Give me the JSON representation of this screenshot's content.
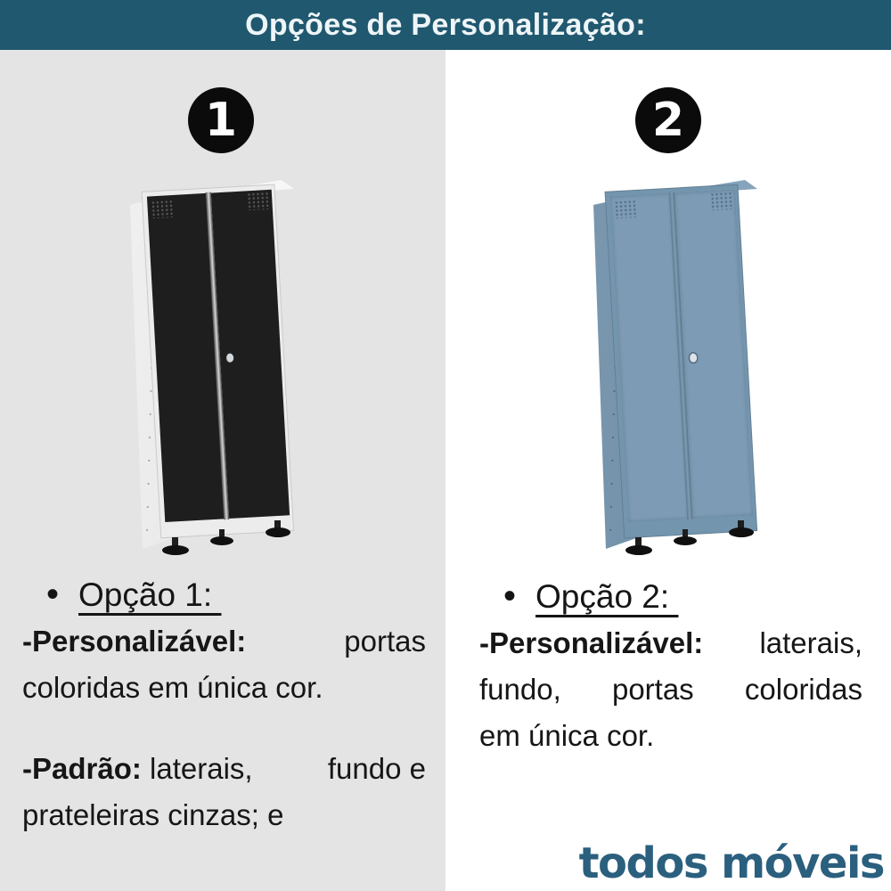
{
  "header": {
    "title": "Opções de Personalização:"
  },
  "left": {
    "badge": "1",
    "bullet": "•",
    "heading": "Opção 1: ",
    "para1": {
      "line1_bold": "-Personalizável:",
      "line1_rest": "portas",
      "line2": "coloridas em única cor."
    },
    "para2": {
      "line1_bold": "-Padrão:",
      "line1_rest": " laterais,",
      "line1_end": "fundo e",
      "line2": "prateleiras cinzas; e"
    }
  },
  "right": {
    "badge": "2",
    "bullet": "•",
    "heading": "Opção 2: ",
    "para1": {
      "line1_bold": "-Personalizável:",
      "line1_rest": "laterais,",
      "line2_w1": "fundo,",
      "line2_w2": "portas",
      "line2_w3": "coloridas",
      "line3": "em única cor."
    }
  },
  "footer": {
    "logo": "todos móveis"
  },
  "colors": {
    "header_teal": "#20586F",
    "left_panel_gray": "#E4E4E4",
    "right_panel_white": "#FFFFFF",
    "badge_black": "#0B0B0B",
    "cabinet1_body": "#F3F3F3",
    "cabinet1_doors": "#1E1E1E",
    "cabinet2_body": "#7C99B1",
    "logo_teal": "#2B5F7E",
    "text_black": "#161616"
  }
}
